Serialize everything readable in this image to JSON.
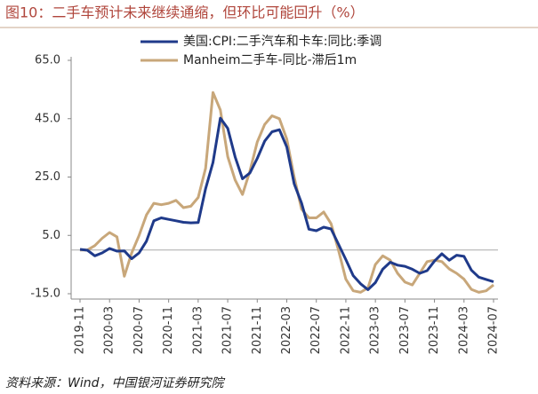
{
  "chart_data": {
    "type": "line",
    "title": "图10：二手车预计未来继续通缩，但环比可能回升（%）",
    "source": "资料来源：Wind，中国银河证券研究院",
    "categories": [
      "2019-11",
      null,
      null,
      null,
      "2020-03",
      null,
      null,
      null,
      "2020-07",
      null,
      null,
      null,
      "2020-11",
      null,
      null,
      null,
      "2021-03",
      null,
      null,
      null,
      "2021-07",
      null,
      null,
      null,
      "2021-11",
      null,
      null,
      null,
      "2022-03",
      null,
      null,
      null,
      "2022-07",
      null,
      null,
      null,
      "2022-11",
      null,
      null,
      null,
      "2023-03",
      null,
      null,
      null,
      "2023-07",
      null,
      null,
      null,
      "2023-11",
      null,
      null,
      null,
      "2024-03",
      null,
      null,
      null,
      "2024-07"
    ],
    "series": [
      {
        "name": "美国:CPI:二手汽车和卡车:同比:季调",
        "color": "#1f3a8a",
        "values": [
          0.2,
          -0.1,
          -2,
          -1,
          0.5,
          -0.4,
          -0.3,
          -3,
          -1,
          3,
          10,
          11,
          10.5,
          10,
          9.5,
          9.3,
          9.4,
          21,
          30,
          45.2,
          41.7,
          31.9,
          24.4,
          26.4,
          31.4,
          37.3,
          40.5,
          41.2,
          35.3,
          22.7,
          16.1,
          7.1,
          6.6,
          7.8,
          7.2,
          2.0,
          -3.3,
          -8.8,
          -11.6,
          -13.6,
          -11.2,
          -6.6,
          -4.2,
          -5.2,
          -5.6,
          -6.6,
          -8.0,
          -7.1,
          -3.8,
          -1.3,
          -3.5,
          -1.8,
          -2.2,
          -6.9,
          -9.3,
          -10.1,
          -10.9
        ]
      },
      {
        "name": "Manheim二手车-同比-滞后1m",
        "color": "#c8a77a",
        "values": [
          0,
          0,
          1.5,
          4,
          6,
          4.5,
          -9,
          -1,
          5,
          12,
          16,
          15.5,
          16,
          17,
          14.5,
          15,
          18,
          28,
          54,
          48,
          32,
          24,
          19,
          27,
          37,
          43,
          46,
          45,
          38,
          25,
          14,
          11,
          11,
          13,
          9,
          0,
          -10,
          -14,
          -14.5,
          -13,
          -5,
          -2,
          -3.5,
          -8,
          -11,
          -12,
          -8,
          -4,
          -3.5,
          -4,
          -6.5,
          -8,
          -10,
          -13.5,
          -14.5,
          -14,
          -12
        ]
      }
    ],
    "ylim": [
      -15,
      65
    ],
    "yticks": [
      {
        "value": 65,
        "label": "65.0"
      },
      {
        "value": 45,
        "label": "45.0"
      },
      {
        "value": 25,
        "label": "25.0"
      },
      {
        "value": 5,
        "label": "5.0"
      },
      {
        "value": -15,
        "label": "-15.0"
      }
    ],
    "legend": "top"
  }
}
